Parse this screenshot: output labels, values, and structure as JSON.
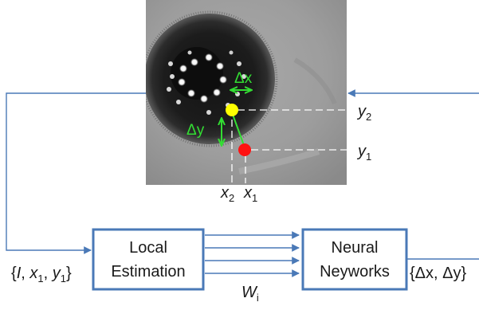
{
  "diagram": {
    "eye_labels": {
      "dx": "Δx",
      "dy": "Δy",
      "y2": "y",
      "y2_sub": "2",
      "y1": "y",
      "y1_sub": "1",
      "x2": "x",
      "x2_sub": "2",
      "x1": "x",
      "x1_sub": "1"
    },
    "boxes": {
      "local_line1": "Local",
      "local_line2": "Estimation",
      "neural_line1": "Neural",
      "neural_line2": "Neyworks"
    },
    "weights_label": "W",
    "weights_sub": "i",
    "input_label": {
      "open": "{",
      "I": "I",
      "sep1": ", ",
      "x": "x",
      "x_sub": "1",
      "sep2": ", ",
      "y": "y",
      "y_sub": "1",
      "close": "}"
    },
    "output_label": "{Δx, Δy}",
    "colors": {
      "flow": "#4a79b7",
      "box_stroke": "#4a79b7",
      "annotation_green": "#33dd33",
      "target_yellow": "#ffff00",
      "detected_red": "#ff1111",
      "guide_white": "#ffffff"
    }
  }
}
